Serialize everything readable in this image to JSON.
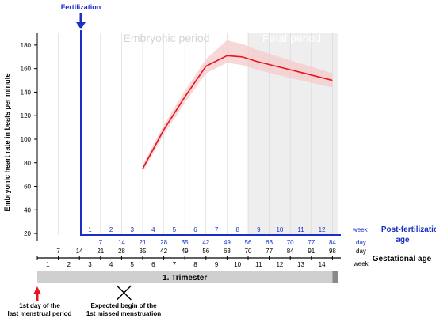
{
  "chart_data": {
    "type": "line",
    "ylabel": "Embryonic heart rate in beats per minute",
    "yticks": [
      20,
      40,
      60,
      80,
      100,
      120,
      140,
      160,
      180
    ],
    "ylim": [
      14,
      190
    ],
    "xlim_days": [
      0,
      100
    ],
    "periods": {
      "embryonic": "Embryonic period",
      "fetal": "Fetal period",
      "fetal_start_day": 70
    },
    "fertilization": {
      "label": "Fertilization",
      "day": 14
    },
    "series": [
      {
        "name": "",
        "color": "#e8141c",
        "band_color": "#f6c9cb",
        "x_gestational_day": [
          35,
          42,
          49,
          56,
          63,
          68,
          73,
          84,
          98
        ],
        "y": [
          75,
          108,
          136,
          162,
          171,
          170,
          166,
          159,
          150
        ],
        "band_low": [
          72,
          104,
          131,
          156,
          165,
          163,
          159,
          152,
          144
        ],
        "band_high": [
          78,
          112,
          141,
          168,
          184,
          181,
          176,
          167,
          156
        ]
      }
    ],
    "post_fertilization": {
      "label": "Post-fertilization age",
      "week_unit": "week",
      "day_unit": "day",
      "weeks": [
        "1",
        "2",
        "3",
        "4",
        "5",
        "6",
        "7",
        "8",
        "9",
        "10",
        "11",
        "12"
      ],
      "days": [
        "7",
        "14",
        "21",
        "28",
        "35",
        "42",
        "49",
        "56",
        "63",
        "70",
        "77",
        "84"
      ]
    },
    "gestational": {
      "label": "Gestational age",
      "day_unit": "day",
      "week_unit": "week",
      "days": [
        "7",
        "14",
        "21",
        "28",
        "35",
        "42",
        "49",
        "56",
        "63",
        "70",
        "77",
        "84",
        "91",
        "98"
      ],
      "weeks": [
        "1",
        "2",
        "3",
        "4",
        "5",
        "6",
        "7",
        "8",
        "9",
        "10",
        "11",
        "12",
        "13",
        "14"
      ]
    },
    "trimester": {
      "label": "1. Trimester",
      "end_day": 98
    },
    "markers": {
      "lmp": {
        "text_line1": "1st day of the",
        "text_line2": "last menstrual period",
        "day": 0
      },
      "missed_menstruation": {
        "text_line1": "Expected begin of the",
        "text_line2": "1st missed menstruation",
        "day": 28
      }
    }
  },
  "colors": {
    "blue": "#1a2fc4",
    "red": "#e8141c",
    "grid": "#d6d6d6",
    "fetal_bg": "#eeeeee",
    "trimester_bar": "#cfcfcf",
    "trimester_end": "#8a8a8a"
  }
}
